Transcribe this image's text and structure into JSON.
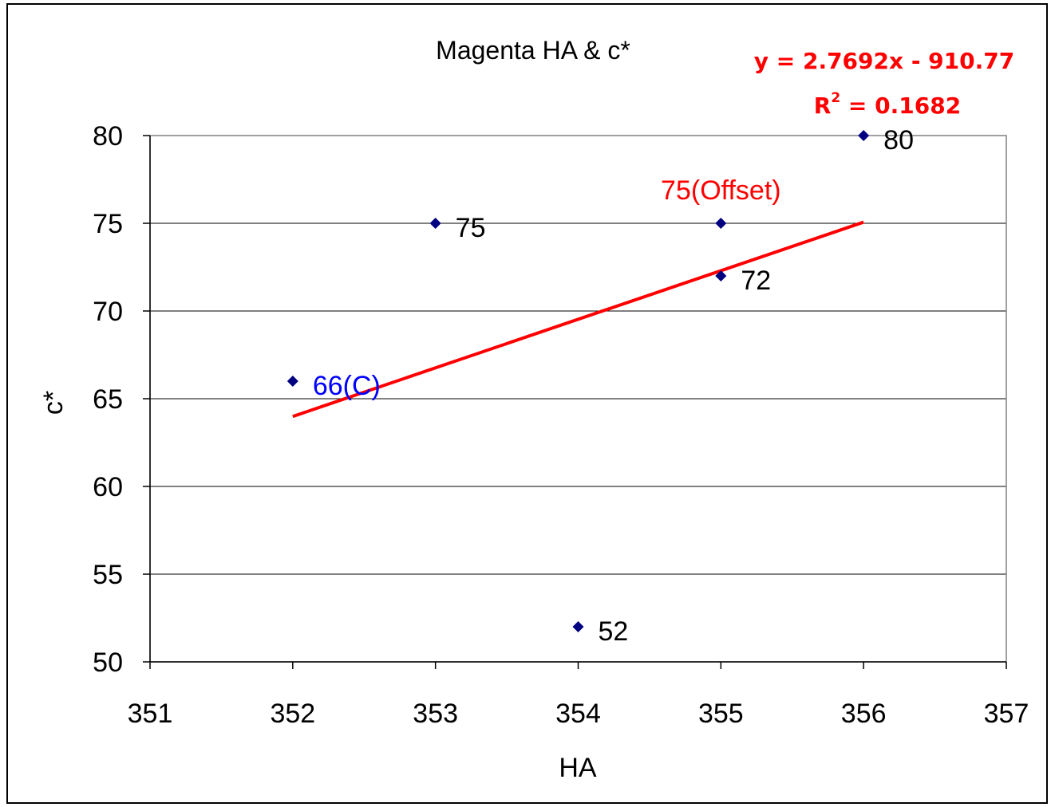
{
  "chart_data": {
    "type": "scatter",
    "title": "Magenta HA & c*",
    "xlabel": "HA",
    "ylabel": "c*",
    "xlim": [
      351,
      357
    ],
    "ylim": [
      50,
      80
    ],
    "xticks": [
      "351",
      "352",
      "353",
      "354",
      "355",
      "356",
      "357"
    ],
    "yticks": [
      "50",
      "55",
      "60",
      "65",
      "70",
      "75",
      "80"
    ],
    "grid": "horizontal",
    "points": [
      {
        "x": 352,
        "y": 66,
        "label": "66(C)",
        "label_color": "#0000ff"
      },
      {
        "x": 353,
        "y": 75,
        "label": "75",
        "label_color": "#000000"
      },
      {
        "x": 354,
        "y": 52,
        "label": "52",
        "label_color": "#000000"
      },
      {
        "x": 355,
        "y": 72,
        "label": "72",
        "label_color": "#000000"
      },
      {
        "x": 355,
        "y": 75,
        "label": "75(Offset)",
        "label_color": "#ff0000"
      },
      {
        "x": 356,
        "y": 80,
        "label": "80",
        "label_color": "#000000"
      }
    ],
    "marker_color": "#000080",
    "trendline": {
      "slope": 2.7692,
      "intercept": -910.77,
      "x_range": [
        352,
        356
      ],
      "color": "#ff0000",
      "equation": "y = 2.7692x - 910.77",
      "r2_prefix": "R",
      "r2_exp": "2",
      "r2_value": " = 0.1682"
    }
  }
}
